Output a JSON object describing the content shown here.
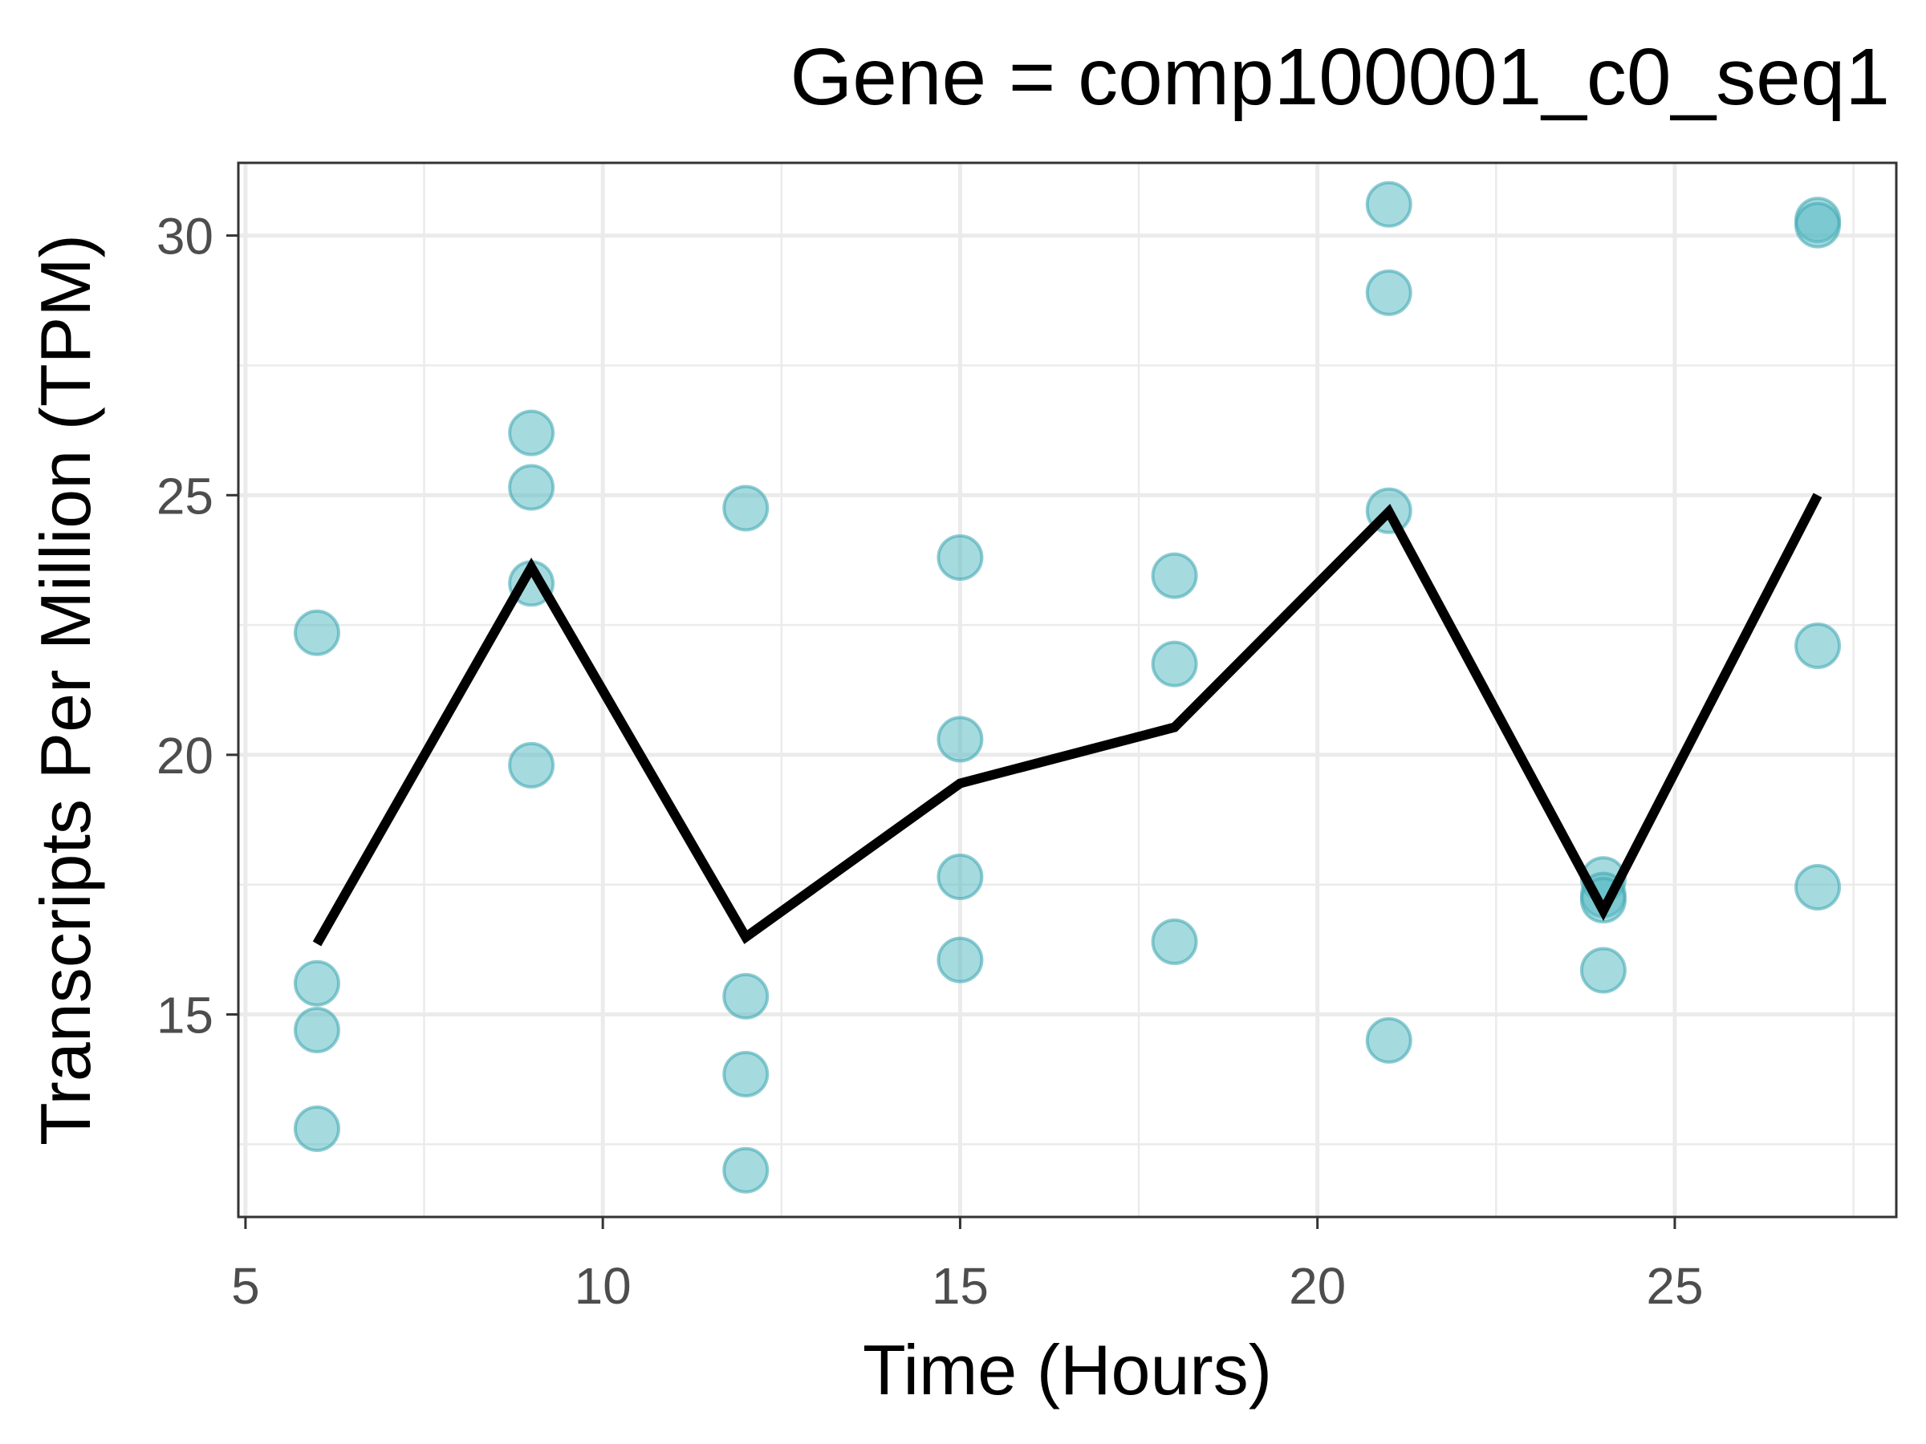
{
  "chart_data": {
    "type": "scatter",
    "title": "Gene =  comp100001_c0_seq1",
    "xlabel": "Time (Hours)",
    "ylabel": "Transcripts Per Million (TPM)",
    "xlim": [
      4.9,
      28.1
    ],
    "ylim": [
      11.1,
      31.4
    ],
    "x_ticks": [
      5,
      10,
      15,
      20,
      25
    ],
    "x_tick_labels": [
      "5",
      "10",
      "15",
      "20",
      "25"
    ],
    "x_minor_ticks": [
      7.5,
      12.5,
      17.5,
      22.5,
      27.5
    ],
    "y_ticks": [
      15,
      20,
      25,
      30
    ],
    "y_tick_labels": [
      "15",
      "20",
      "25",
      "30"
    ],
    "y_minor_ticks": [
      12.5,
      17.5,
      22.5,
      27.5
    ],
    "grid": true,
    "legend": "none",
    "point_color": "#5bbcc4",
    "point_stroke": "#45aab4",
    "line_color": "#000000",
    "series": [
      {
        "kind": "points",
        "points": [
          {
            "x": 6,
            "y": 22.35
          },
          {
            "x": 6,
            "y": 15.6
          },
          {
            "x": 6,
            "y": 14.7
          },
          {
            "x": 6,
            "y": 12.8
          },
          {
            "x": 9,
            "y": 26.2
          },
          {
            "x": 9,
            "y": 25.15
          },
          {
            "x": 9,
            "y": 23.3
          },
          {
            "x": 9,
            "y": 19.8
          },
          {
            "x": 12,
            "y": 24.75
          },
          {
            "x": 12,
            "y": 15.35
          },
          {
            "x": 12,
            "y": 13.85
          },
          {
            "x": 12,
            "y": 12.0
          },
          {
            "x": 15,
            "y": 23.8
          },
          {
            "x": 15,
            "y": 20.3
          },
          {
            "x": 15,
            "y": 17.65
          },
          {
            "x": 15,
            "y": 16.05
          },
          {
            "x": 18,
            "y": 23.45
          },
          {
            "x": 18,
            "y": 21.75
          },
          {
            "x": 18,
            "y": 16.4
          },
          {
            "x": 21,
            "y": 30.6
          },
          {
            "x": 21,
            "y": 28.9
          },
          {
            "x": 21,
            "y": 24.7
          },
          {
            "x": 21,
            "y": 14.5
          },
          {
            "x": 24,
            "y": 17.6
          },
          {
            "x": 24,
            "y": 17.3
          },
          {
            "x": 24,
            "y": 17.2
          },
          {
            "x": 24,
            "y": 15.85
          },
          {
            "x": 27,
            "y": 30.3
          },
          {
            "x": 27,
            "y": 30.2
          },
          {
            "x": 27,
            "y": 22.1
          },
          {
            "x": 27,
            "y": 17.45
          }
        ]
      },
      {
        "kind": "line",
        "x": [
          6,
          9,
          12,
          15,
          18,
          21,
          24,
          27
        ],
        "y": [
          16.36,
          23.61,
          16.49,
          19.45,
          20.53,
          24.68,
          17.0,
          25.0
        ]
      }
    ]
  }
}
